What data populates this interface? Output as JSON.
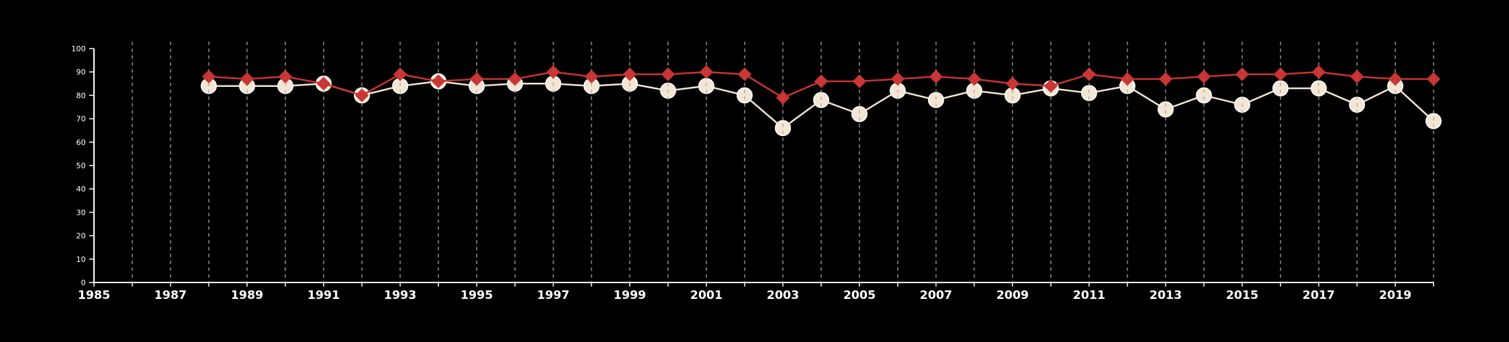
{
  "chart_data": {
    "type": "line",
    "title": "",
    "xlabel": "",
    "ylabel": "",
    "xlim": [
      1985,
      2020
    ],
    "ylim": [
      0,
      100
    ],
    "x_ticks": [
      1985,
      1987,
      1989,
      1991,
      1993,
      1995,
      1997,
      1999,
      2001,
      2003,
      2005,
      2007,
      2009,
      2011,
      2013,
      2015,
      2017,
      2019
    ],
    "y_ticks": [
      0,
      10,
      20,
      30,
      40,
      50,
      60,
      70,
      80,
      90,
      100
    ],
    "grid": {
      "vertical_every_year": true,
      "horizontal": false
    },
    "legend": "none",
    "x": [
      1988,
      1989,
      1990,
      1991,
      1992,
      1993,
      1994,
      1995,
      1996,
      1997,
      1998,
      1999,
      2000,
      2001,
      2002,
      2003,
      2004,
      2005,
      2006,
      2007,
      2008,
      2009,
      2010,
      2011,
      2012,
      2013,
      2014,
      2015,
      2016,
      2017,
      2018,
      2019,
      2020
    ],
    "series": [
      {
        "marker": "circle",
        "color": "#f4e6d4",
        "values": [
          84,
          84,
          84,
          85,
          80,
          84,
          86,
          84,
          85,
          85,
          84,
          85,
          82,
          84,
          80,
          66,
          78,
          72,
          82,
          78,
          82,
          80,
          83,
          81,
          84,
          74,
          80,
          76,
          83,
          83,
          76,
          84,
          69
        ]
      },
      {
        "marker": "diamond",
        "color": "#cc3333",
        "values": [
          88,
          87,
          88,
          85,
          80,
          89,
          86,
          87,
          87,
          90,
          88,
          89,
          89,
          90,
          89,
          79,
          86,
          86,
          87,
          88,
          87,
          85,
          84,
          89,
          87,
          87,
          88,
          89,
          89,
          90,
          88,
          87,
          87
        ]
      }
    ]
  }
}
